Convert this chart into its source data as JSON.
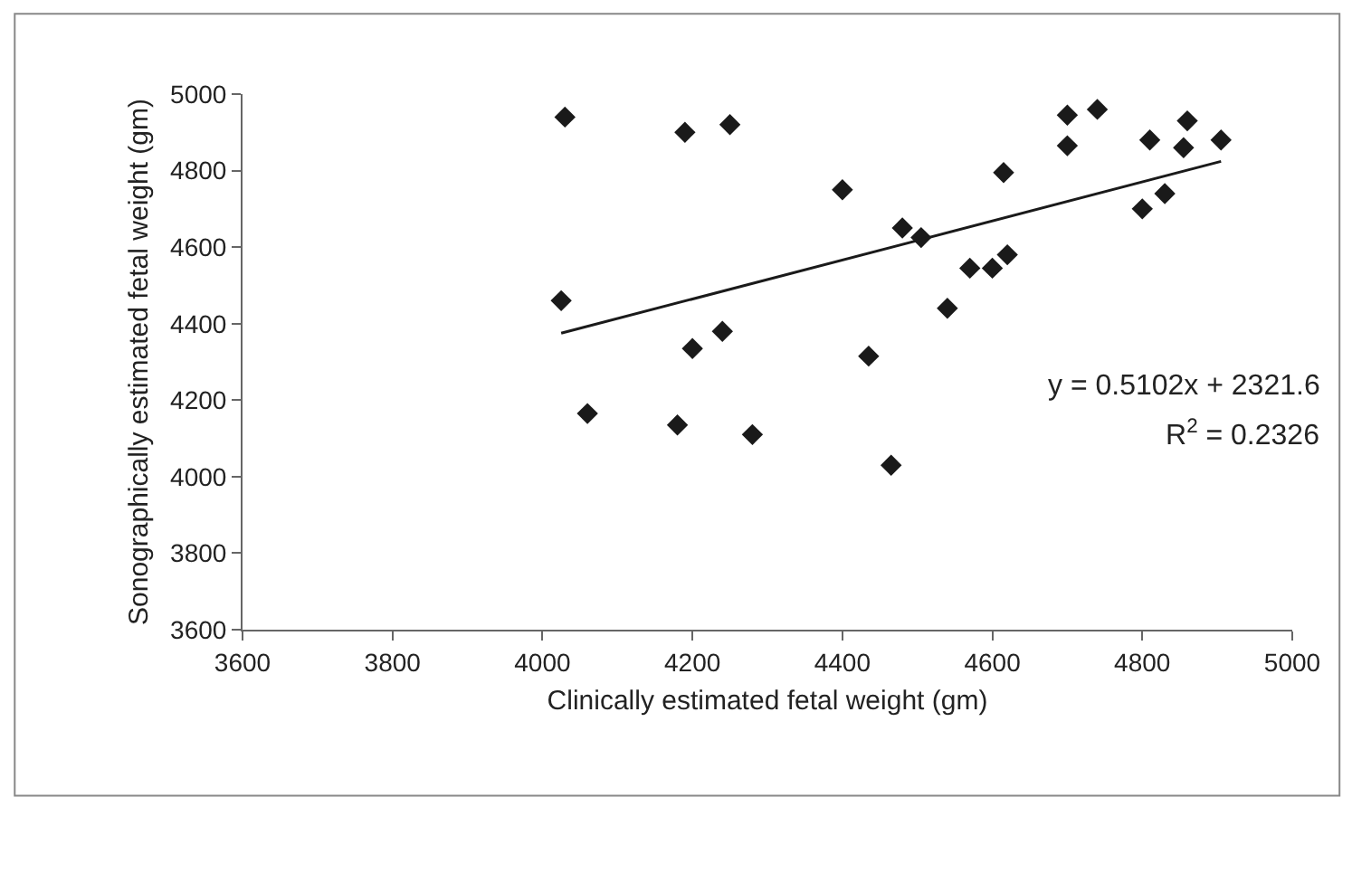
{
  "chart_data": {
    "type": "scatter",
    "xlabel": "Clinically estimated fetal weight (gm)",
    "ylabel": "Sonographically estimated fetal weight (gm)",
    "xlim": [
      3600,
      5000
    ],
    "xticks": [
      3600,
      3800,
      4000,
      4200,
      4400,
      4600,
      4800,
      5000
    ],
    "ylim": [
      3600,
      5000
    ],
    "yticks": [
      3600,
      3800,
      4000,
      4200,
      4400,
      4600,
      4800,
      5000
    ],
    "grid": false,
    "marker": "diamond",
    "series": [
      {
        "color": "#1a1a1a",
        "x": [
          4030,
          4025,
          4060,
          4180,
          4190,
          4200,
          4240,
          4250,
          4280,
          4400,
          4435,
          4465,
          4480,
          4505,
          4540,
          4570,
          4600,
          4620,
          4615,
          4700,
          4700,
          4740,
          4800,
          4810,
          4830,
          4855,
          4860,
          4905
        ],
        "values": [
          4940,
          4460,
          4165,
          4135,
          4900,
          4335,
          4380,
          4920,
          4110,
          4750,
          4315,
          4030,
          4650,
          4625,
          4440,
          4545,
          4545,
          4580,
          4795,
          4945,
          4865,
          4960,
          4700,
          4880,
          4740,
          4860,
          4930,
          4880
        ]
      },
      {
        "type": "line",
        "color": "#1a1a1a",
        "line_style": "solid",
        "marker": "none",
        "x": [
          4025,
          4905
        ],
        "values": [
          4375,
          4824
        ]
      }
    ],
    "annotations": [
      "y = 0.5102x + 2321.6",
      "R$^{2}$ = 0.2326"
    ]
  }
}
